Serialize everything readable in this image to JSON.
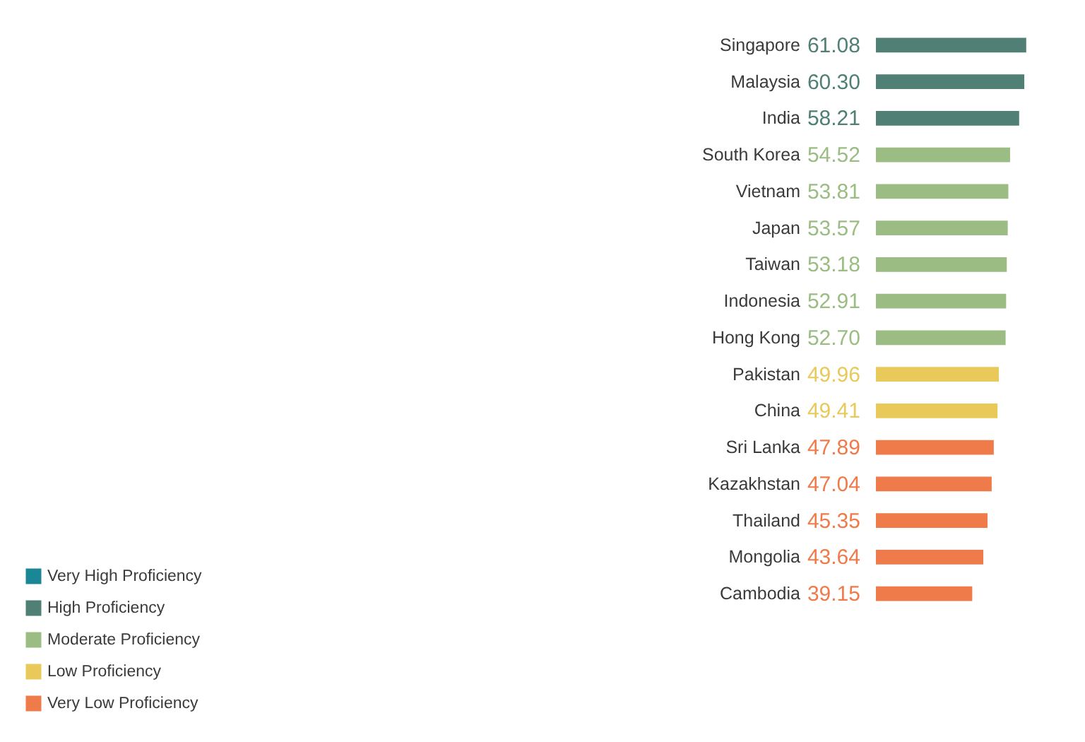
{
  "chart_data": {
    "type": "bar",
    "orientation": "horizontal",
    "categories": [
      "Singapore",
      "Malaysia",
      "India",
      "South Korea",
      "Vietnam",
      "Japan",
      "Taiwan",
      "Indonesia",
      "Hong Kong",
      "Pakistan",
      "China",
      "Sri Lanka",
      "Kazakhstan",
      "Thailand",
      "Mongolia",
      "Cambodia"
    ],
    "series": [
      {
        "name": "Very High Proficiency",
        "color": "#1a8696",
        "values": [
          null,
          null,
          null,
          null,
          null,
          null,
          null,
          null,
          null,
          null,
          null,
          null,
          null,
          null,
          null,
          null
        ]
      },
      {
        "name": "High Proficiency",
        "color": "#4f7f75",
        "values": [
          61.08,
          60.3,
          58.21,
          null,
          null,
          null,
          null,
          null,
          null,
          null,
          null,
          null,
          null,
          null,
          null,
          null
        ],
        "value_labels": [
          "61.08",
          "60.30",
          "58.21",
          null,
          null,
          null,
          null,
          null,
          null,
          null,
          null,
          null,
          null,
          null,
          null,
          null
        ]
      },
      {
        "name": "Moderate Proficiency",
        "color": "#9bbd83",
        "values": [
          null,
          null,
          null,
          54.52,
          53.81,
          53.57,
          53.18,
          52.91,
          52.7,
          null,
          null,
          null,
          null,
          null,
          null,
          null
        ],
        "value_labels": [
          null,
          null,
          null,
          "54.52",
          "53.81",
          "53.57",
          "53.18",
          "52.91",
          "52.70",
          null,
          null,
          null,
          null,
          null,
          null,
          null
        ]
      },
      {
        "name": "Low Proficiency",
        "color": "#e8c95a",
        "values": [
          null,
          null,
          null,
          null,
          null,
          null,
          null,
          null,
          null,
          49.96,
          49.41,
          null,
          null,
          null,
          null,
          null
        ],
        "value_labels": [
          null,
          null,
          null,
          null,
          null,
          null,
          null,
          null,
          null,
          "49.96",
          "49.41",
          null,
          null,
          null,
          null,
          null
        ]
      },
      {
        "name": "Very Low Proficiency",
        "color": "#ef7b4a",
        "values": [
          null,
          null,
          null,
          null,
          null,
          null,
          null,
          null,
          null,
          null,
          null,
          47.89,
          47.04,
          45.35,
          43.64,
          39.15
        ],
        "value_labels": [
          null,
          null,
          null,
          null,
          null,
          null,
          null,
          null,
          null,
          null,
          null,
          "47.89",
          "47.04",
          "45.35",
          "43.64",
          "39.15"
        ]
      }
    ],
    "xlim": [
      0,
      62
    ],
    "tick_labels": "y",
    "grid": false,
    "legend": "bottom left"
  }
}
